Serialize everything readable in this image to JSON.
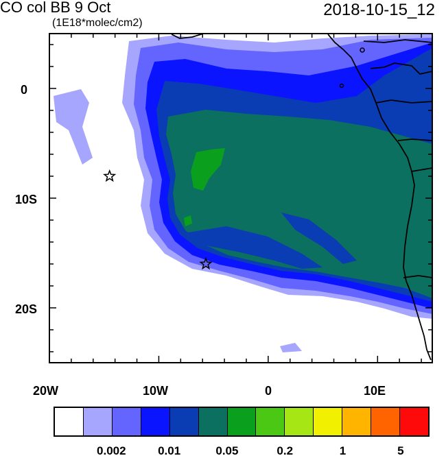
{
  "title": "CO col BB 9 Oct",
  "units": "(1E18*molec/cm2)",
  "datetime": "2018-10-15_12",
  "axes": {
    "x_ticks": [
      "20W",
      "10W",
      "0",
      "10E"
    ],
    "y_ticks": [
      "0",
      "10S",
      "20S"
    ]
  },
  "colorbar": {
    "colors": [
      "#ffffff",
      "#a6a6ff",
      "#6464ff",
      "#0a14ff",
      "#0a3cb4",
      "#0b7060",
      "#0aa01e",
      "#4bc814",
      "#a6e614",
      "#f0f000",
      "#ffb400",
      "#ff6400",
      "#ff0a0a"
    ],
    "labels": [
      "0.002",
      "0.01",
      "0.05",
      "0.2",
      "1",
      "5"
    ]
  },
  "markers": [
    {
      "name": "star-marker-west",
      "lon": -14.5,
      "lat": -8
    },
    {
      "name": "star-marker-south",
      "lon": -5.7,
      "lat": -16
    }
  ]
}
